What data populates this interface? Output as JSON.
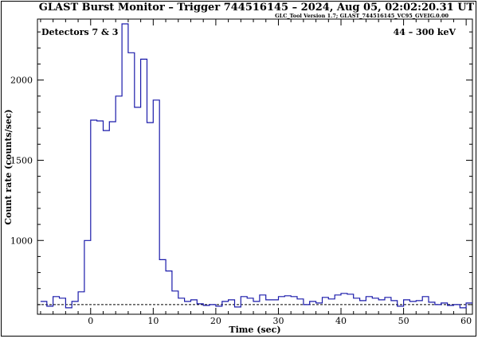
{
  "title": "GLAST Burst Monitor  –  Trigger 744516145  –  2024, Aug 05, 02:02:20.31 UT",
  "subtitle": "GLC_Tool Version 1.7; GLAST_744516145_VC95_GVEIG.0.00",
  "detectors_label": "Detectors 7 & 3",
  "energy_label": "44 – 300 keV",
  "chart_data": {
    "type": "line",
    "style": "step-histogram",
    "xlabel": "Time (sec)",
    "ylabel": "Count rate (counts/sec)",
    "xlim": [
      -8.5,
      61
    ],
    "ylim": [
      540,
      2380
    ],
    "xticks": [
      0,
      10,
      20,
      30,
      40,
      50,
      60
    ],
    "yticks": [
      1000,
      1500,
      2000
    ],
    "background_level": 600,
    "bin_edges": [
      -8,
      -7,
      -6,
      -5,
      -4,
      -3,
      -2,
      -1,
      0,
      1,
      2,
      3,
      4,
      5,
      6,
      7,
      8,
      9,
      10,
      11,
      12,
      13,
      14,
      15,
      16,
      17,
      18,
      19,
      20,
      21,
      22,
      23,
      24,
      25,
      26,
      27,
      28,
      29,
      30,
      31,
      32,
      33,
      34,
      35,
      36,
      37,
      38,
      39,
      40,
      41,
      42,
      43,
      44,
      45,
      46,
      47,
      48,
      49,
      50,
      51,
      52,
      53,
      54,
      55,
      56,
      57,
      58,
      59,
      60,
      61
    ],
    "values": [
      620,
      590,
      650,
      640,
      580,
      620,
      680,
      1000,
      1750,
      1745,
      1685,
      1740,
      1900,
      2350,
      2170,
      1830,
      2130,
      1735,
      1875,
      880,
      810,
      685,
      640,
      620,
      630,
      605,
      595,
      600,
      590,
      620,
      630,
      585,
      650,
      640,
      620,
      660,
      630,
      630,
      650,
      655,
      650,
      635,
      600,
      620,
      610,
      645,
      635,
      660,
      670,
      665,
      640,
      625,
      650,
      640,
      630,
      645,
      625,
      590,
      630,
      620,
      625,
      650,
      615,
      600,
      610,
      595,
      600,
      580,
      610
    ]
  }
}
